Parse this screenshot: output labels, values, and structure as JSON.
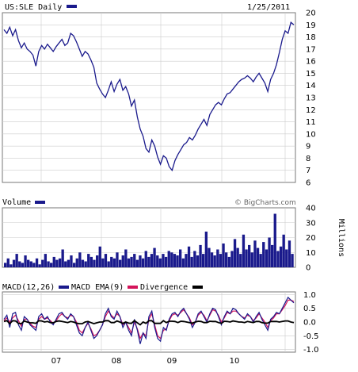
{
  "chart_data": [
    {
      "type": "line",
      "panel": "price",
      "title": "US:SLE Daily",
      "date": "1/25/2011",
      "ylim": [
        6,
        20
      ],
      "yticks": [
        "20",
        "19",
        "18",
        "17",
        "16",
        "15",
        "14",
        "13",
        "12",
        "11",
        "10",
        "9",
        "8",
        "7",
        "6"
      ],
      "xticks": [
        "07",
        "08",
        "09",
        "10"
      ],
      "grid": true,
      "color": "#1a1a8c",
      "series": [
        {
          "values": [
            18.6,
            18.3,
            18.8,
            18.1,
            18.6,
            17.7,
            17.1,
            17.5,
            17.0,
            16.8,
            16.5,
            15.6,
            16.8,
            17.3,
            17.0,
            17.4,
            17.1,
            16.8,
            17.2,
            17.5,
            17.8,
            17.3,
            17.5,
            18.3,
            18.1,
            17.6,
            17.0,
            16.4,
            16.8,
            16.6,
            16.1,
            15.5,
            14.2,
            13.7,
            13.3,
            13.0,
            13.6,
            14.3,
            13.5,
            14.1,
            14.5,
            13.6,
            13.9,
            13.3,
            12.3,
            12.8,
            11.4,
            10.4,
            9.8,
            8.8,
            8.5,
            9.5,
            9.0,
            8.1,
            7.5,
            8.2,
            8.0,
            7.3,
            7.0,
            7.8,
            8.3,
            8.7,
            9.1,
            9.3,
            9.7,
            9.5,
            9.9,
            10.4,
            10.8,
            11.2,
            10.7,
            11.6,
            12.0,
            12.4,
            12.6,
            12.4,
            12.9,
            13.3,
            13.4,
            13.7,
            14.0,
            14.3,
            14.5,
            14.6,
            14.8,
            14.6,
            14.3,
            14.7,
            15.0,
            14.6,
            14.2,
            13.5,
            14.5,
            15.0,
            15.7,
            16.7,
            17.8,
            18.5,
            18.3,
            19.2,
            19.0
          ]
        }
      ]
    },
    {
      "type": "bar",
      "panel": "volume",
      "title": "Volume",
      "source": "© BigCharts.com",
      "ylabel": "Millions",
      "ylim": [
        0,
        40
      ],
      "yticks": [
        "40",
        "30",
        "20",
        "10",
        "0"
      ],
      "color": "#1a1a8c",
      "values": [
        3,
        6,
        2,
        5,
        9,
        4,
        3,
        8,
        5,
        4,
        3,
        6,
        2,
        5,
        9,
        4,
        3,
        7,
        5,
        6,
        12,
        4,
        5,
        8,
        3,
        6,
        10,
        5,
        4,
        9,
        7,
        5,
        8,
        14,
        6,
        9,
        4,
        7,
        6,
        10,
        5,
        8,
        12,
        6,
        7,
        9,
        5,
        8,
        6,
        11,
        7,
        9,
        13,
        8,
        6,
        9,
        7,
        11,
        10,
        9,
        8,
        12,
        6,
        9,
        14,
        7,
        11,
        8,
        15,
        9,
        24,
        13,
        10,
        8,
        12,
        9,
        16,
        10,
        7,
        11,
        19,
        13,
        9,
        22,
        12,
        15,
        10,
        18,
        13,
        9,
        17,
        12,
        20,
        15,
        36,
        11,
        14,
        22,
        12,
        18,
        9
      ]
    },
    {
      "type": "line",
      "panel": "macd",
      "title": "MACD(12,26)",
      "ylim": [
        -1.1,
        1.1
      ],
      "yticks": [
        "1.0",
        "0.5",
        "0.0",
        "-0.5",
        "-1.0"
      ],
      "legend": [
        {
          "name": "MACD(12,26)",
          "color": "#1a1a8c"
        },
        {
          "name": "MACD EMA(9)",
          "color": "#d4145a"
        },
        {
          "name": "Divergence",
          "color": "#000000"
        }
      ],
      "series": [
        {
          "name": "MACD(12,26)",
          "color": "#1a1a8c",
          "values": [
            0.1,
            0.25,
            -0.2,
            0.3,
            0.35,
            -0.1,
            -0.3,
            0.2,
            0.1,
            -0.1,
            -0.2,
            -0.3,
            0.2,
            0.3,
            0.1,
            0.2,
            0.0,
            -0.1,
            0.1,
            0.3,
            0.35,
            0.2,
            0.1,
            0.3,
            0.2,
            -0.1,
            -0.4,
            -0.5,
            -0.2,
            0.0,
            -0.3,
            -0.6,
            -0.5,
            -0.3,
            -0.1,
            0.3,
            0.5,
            0.2,
            0.1,
            0.4,
            0.2,
            -0.2,
            0.0,
            -0.3,
            -0.5,
            0.1,
            -0.3,
            -0.8,
            -0.4,
            -0.6,
            0.2,
            0.4,
            -0.2,
            -0.6,
            -0.7,
            -0.2,
            -0.3,
            0.1,
            0.3,
            0.35,
            0.2,
            0.4,
            0.5,
            0.3,
            0.1,
            -0.2,
            0.0,
            0.3,
            0.4,
            0.2,
            0.0,
            0.3,
            0.5,
            0.45,
            0.2,
            -0.1,
            0.2,
            0.4,
            0.3,
            0.5,
            0.45,
            0.3,
            0.2,
            0.1,
            0.3,
            0.2,
            0.0,
            0.2,
            0.35,
            0.1,
            -0.1,
            -0.3,
            0.1,
            0.2,
            0.35,
            0.3,
            0.5,
            0.7,
            0.9,
            0.8,
            0.7
          ]
        },
        {
          "name": "MACD EMA(9)",
          "color": "#d4145a",
          "values": [
            0.05,
            0.15,
            0.0,
            0.15,
            0.25,
            0.05,
            -0.15,
            0.1,
            0.1,
            -0.05,
            -0.15,
            -0.2,
            0.1,
            0.2,
            0.1,
            0.15,
            0.05,
            -0.05,
            0.05,
            0.2,
            0.3,
            0.2,
            0.15,
            0.25,
            0.2,
            0.0,
            -0.3,
            -0.4,
            -0.2,
            -0.05,
            -0.25,
            -0.5,
            -0.45,
            -0.3,
            -0.1,
            0.2,
            0.4,
            0.25,
            0.15,
            0.3,
            0.2,
            -0.1,
            0.0,
            -0.2,
            -0.4,
            0.0,
            -0.25,
            -0.6,
            -0.4,
            -0.5,
            0.1,
            0.3,
            -0.1,
            -0.5,
            -0.6,
            -0.3,
            -0.25,
            0.05,
            0.25,
            0.3,
            0.25,
            0.35,
            0.45,
            0.3,
            0.15,
            -0.1,
            0.0,
            0.25,
            0.35,
            0.25,
            0.05,
            0.25,
            0.45,
            0.4,
            0.25,
            0.0,
            0.15,
            0.35,
            0.3,
            0.4,
            0.4,
            0.3,
            0.2,
            0.15,
            0.25,
            0.2,
            0.05,
            0.15,
            0.3,
            0.15,
            0.0,
            -0.2,
            0.05,
            0.15,
            0.3,
            0.3,
            0.45,
            0.6,
            0.8,
            0.8,
            0.75
          ]
        },
        {
          "name": "Divergence",
          "color": "#000000",
          "values": [
            0.02,
            0.05,
            -0.06,
            0.05,
            0.04,
            -0.05,
            -0.06,
            0.04,
            0.0,
            -0.03,
            -0.03,
            -0.05,
            0.05,
            0.04,
            0.0,
            0.02,
            -0.02,
            -0.03,
            0.02,
            0.04,
            0.02,
            0.0,
            -0.02,
            0.02,
            0.0,
            -0.04,
            -0.06,
            -0.06,
            0.0,
            0.02,
            -0.02,
            -0.06,
            -0.03,
            0.0,
            0.0,
            0.05,
            0.05,
            -0.02,
            -0.02,
            0.04,
            0.0,
            -0.05,
            0.0,
            -0.04,
            -0.05,
            0.05,
            -0.03,
            -0.1,
            0.0,
            -0.05,
            0.05,
            0.05,
            -0.05,
            -0.05,
            -0.05,
            0.05,
            -0.02,
            0.03,
            0.03,
            0.02,
            -0.02,
            0.03,
            0.02,
            0.0,
            -0.02,
            -0.04,
            0.0,
            0.03,
            0.02,
            -0.02,
            -0.02,
            0.03,
            0.02,
            0.02,
            -0.02,
            -0.05,
            0.03,
            0.02,
            0.0,
            0.04,
            0.02,
            0.0,
            0.0,
            -0.02,
            0.02,
            0.0,
            -0.02,
            0.02,
            0.02,
            -0.02,
            -0.04,
            -0.04,
            0.02,
            0.02,
            0.02,
            0.0,
            0.02,
            0.04,
            0.04,
            0.0,
            -0.02
          ]
        }
      ]
    }
  ]
}
